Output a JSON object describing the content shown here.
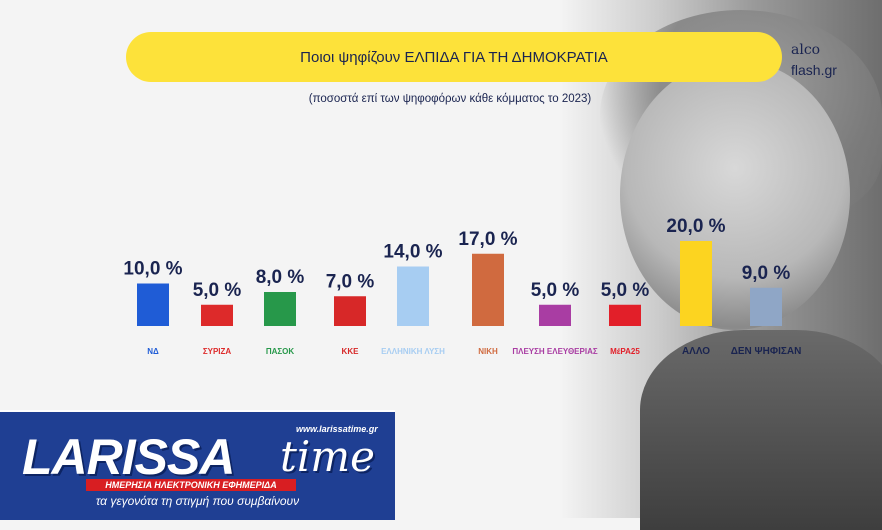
{
  "header": {
    "title": "Ποιοι ψηφίζουν ΕΛΠΙΔΑ ΓΙΑ ΤΗ ΔΗΜΟΚΡΑΤΙΑ",
    "subtitle": "(ποσοστά επί των ψηφοφόρων κάθε κόμματος το 2023)"
  },
  "brand": {
    "line1": "alco",
    "line2": "flash.gr"
  },
  "chart_data": {
    "type": "bar",
    "title": "Ποιοι ψηφίζουν ΕΛΠΙΔΑ ΓΙΑ ΤΗ ΔΗΜΟΚΡΑΤΙΑ",
    "subtitle": "(ποσοστά επί των ψηφοφόρων κάθε κόμματος το 2023)",
    "categories": [
      "ΝΔ",
      "ΣΥΡΙΖΑ",
      "ΠΑΣΟΚ",
      "ΚΚΕ",
      "ΕΛΛΗΝΙΚΗ ΛΥΣΗ",
      "ΝΙΚΗ",
      "ΠΛΕΥΣΗ ΕΛΕΥΘΕΡΙΑΣ",
      "ΜέΡΑ25",
      "ΑΛΛΟ",
      "ΔΕΝ ΨΗΦΙΣΑΝ"
    ],
    "values": [
      10.0,
      5.0,
      8.0,
      7.0,
      14.0,
      17.0,
      5.0,
      5.0,
      20.0,
      9.0
    ],
    "value_labels": [
      "10,0 %",
      "5,0 %",
      "8,0 %",
      "7,0 %",
      "14,0 %",
      "17,0 %",
      "5,0 %",
      "5,0 %",
      "20,0 %",
      "9,0 %"
    ],
    "axis_labels": [
      "ΝΔ",
      "ΣΥΡΙΖΑ",
      "ΠΑΣΟΚ",
      "ΚΚΕ",
      "ΕΛΛΗΝΙΚΗ ΛΥΣΗ",
      "ΝΙΚΗ",
      "ΠΛΕΥΣΗ ΕΛΕΥΘΕΡΙΑΣ",
      "ΜέΡΑ25",
      "ΑΛΛΟ",
      "ΔΕΝ ΨΗΦΙΣΑΝ"
    ],
    "colors": [
      "#1f5cd6",
      "#dd2a2a",
      "#27984a",
      "#d72828",
      "#a7cdf2",
      "#d06a3f",
      "#a93da3",
      "#e21f29",
      "#fcd420",
      "#8fa6c6"
    ],
    "ylim": [
      0,
      20
    ],
    "grid": false,
    "legend": "none"
  },
  "banner": {
    "name_main": "LARISSA",
    "name_time": "time",
    "url": "www.larissatime.gr",
    "tagline_red": "ΗΜΕΡΗΣΙΑ ΗΛΕΚΤΡΟΝΙΚΗ ΕΦΗΜΕΡΙΔΑ",
    "tagline": "τα γεγονότα τη στιγμή που συμβαίνουν"
  }
}
